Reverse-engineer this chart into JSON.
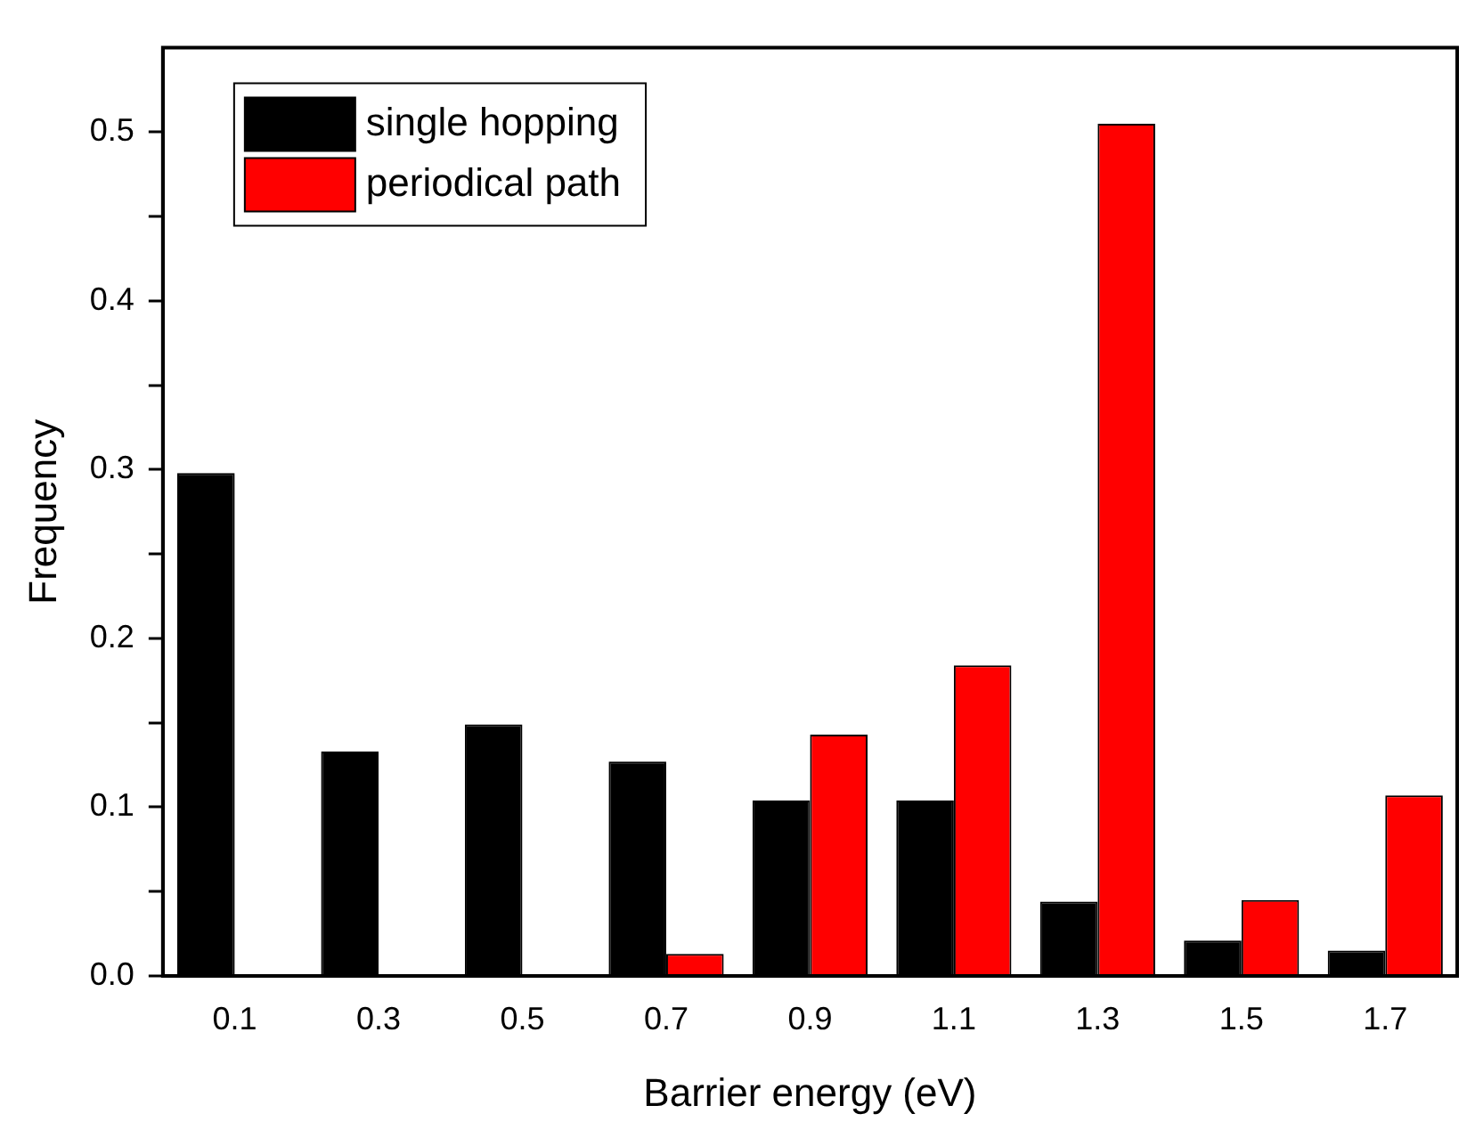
{
  "chart_data": {
    "type": "bar",
    "xlabel": "Barrier energy (eV)",
    "ylabel": "Frequency",
    "categories": [
      "0.1",
      "0.3",
      "0.5",
      "0.7",
      "0.9",
      "1.1",
      "1.3",
      "1.5",
      "1.7"
    ],
    "series": [
      {
        "name": "single hopping",
        "color": "#000000",
        "values": [
          0.298,
          0.133,
          0.149,
          0.127,
          0.104,
          0.104,
          0.044,
          0.021,
          0.015
        ]
      },
      {
        "name": "periodical path",
        "color": "#ff0000",
        "values": [
          0,
          0,
          0,
          0.013,
          0.143,
          0.184,
          0.505,
          0.045,
          0.107
        ]
      }
    ],
    "ylim": [
      0,
      0.55
    ],
    "yticks": [
      {
        "value": 0,
        "label": "0.0"
      },
      {
        "value": 0.05,
        "label": null
      },
      0.1,
      {
        "value": 0.15,
        "label": null
      },
      0.2,
      {
        "value": 0.25,
        "label": null
      },
      0.3,
      {
        "value": 0.35,
        "label": null
      },
      0.4,
      {
        "value": 0.45,
        "label": null
      },
      0.5
    ],
    "grid": false,
    "legend": "top left"
  }
}
